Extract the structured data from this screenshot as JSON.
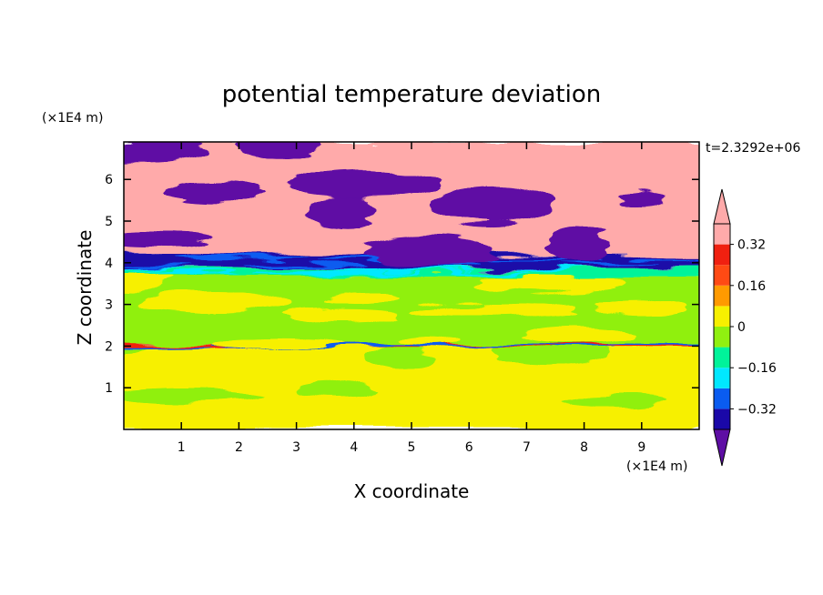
{
  "chart_data": {
    "type": "heatmap",
    "title": "potential temperature deviation",
    "xlabel": "X coordinate",
    "ylabel": "Z coordinate",
    "x_unit": "(×1E4 m)",
    "y_unit": "(×1E4 m)",
    "time_label": "t=2.3292e+06",
    "xlim": [
      0,
      10
    ],
    "ylim": [
      0,
      6.9
    ],
    "x_ticks": [
      "1",
      "2",
      "3",
      "4",
      "5",
      "6",
      "7",
      "8",
      "9"
    ],
    "y_ticks": [
      "1",
      "2",
      "3",
      "4",
      "5",
      "6"
    ],
    "colorbar": {
      "labels": [
        "0.32",
        "0.16",
        "0",
        "-0.16",
        "-0.32"
      ],
      "label_values": [
        0.32,
        0.16,
        0,
        -0.16,
        -0.32
      ],
      "levels": [
        -0.4,
        -0.32,
        -0.24,
        -0.16,
        -0.08,
        0,
        0.08,
        0.16,
        0.24,
        0.32,
        0.4
      ],
      "colors": [
        "#5e0ea4",
        "#1a08a8",
        "#0a5cf0",
        "#00e8ff",
        "#00f39a",
        "#90f010",
        "#f7f000",
        "#ff9a00",
        "#ff4a14",
        "#f02010",
        "#ffaaaa"
      ]
    },
    "layers": [
      {
        "z_range": [
          0,
          1.95
        ],
        "dominant_value": 0.05,
        "secondary_value": -0.04,
        "description": "mixed layer, mostly 0 to 0.08 with patches slightly below 0"
      },
      {
        "z_range": [
          1.95,
          2.05
        ],
        "dominant_value": 0.25,
        "secondary_value": -0.25,
        "description": "thin band of strong positive and negative anomalies"
      },
      {
        "z_range": [
          2.05,
          3.7
        ],
        "dominant_value": -0.04,
        "secondary_value": 0.05,
        "description": "mostly slightly negative with thin positive streaks"
      },
      {
        "z_range": [
          3.7,
          3.85
        ],
        "dominant_value": -0.12,
        "secondary_value": -0.2,
        "description": "cyan/blue transition band"
      },
      {
        "z_range": [
          3.85,
          4.2
        ],
        "dominant_value": -0.38,
        "secondary_value": -0.3,
        "description": "strong negative layer"
      },
      {
        "z_range": [
          4.2,
          6.9
        ],
        "dominant_value": 0.45,
        "secondary_value": -0.45,
        "description": "alternating strong positive and strong negative lenses"
      }
    ]
  }
}
